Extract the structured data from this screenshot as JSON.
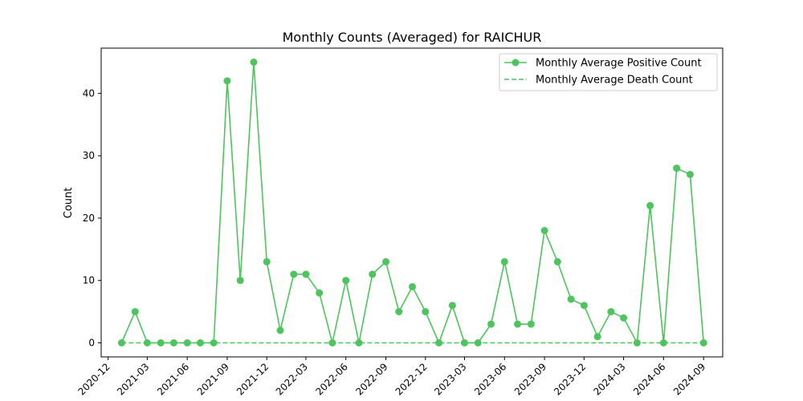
{
  "chart_data": {
    "type": "line",
    "title": "Monthly Counts (Averaged) for RAICHUR",
    "xlabel": "",
    "ylabel": "Count",
    "xlim": [
      "2020-11-15",
      "2024-10-15"
    ],
    "ylim": [
      -2.25,
      47.25
    ],
    "x_ticks": [
      "2020-12",
      "2021-03",
      "2021-06",
      "2021-09",
      "2021-12",
      "2022-03",
      "2022-06",
      "2022-09",
      "2022-12",
      "2023-03",
      "2023-06",
      "2023-09",
      "2023-12",
      "2024-03",
      "2024-06",
      "2024-09"
    ],
    "y_ticks": [
      0,
      10,
      20,
      30,
      40
    ],
    "grid": false,
    "legend_position": "top-right",
    "x": [
      "2021-01",
      "2021-02",
      "2021-03",
      "2021-04",
      "2021-05",
      "2021-06",
      "2021-07",
      "2021-08",
      "2021-09",
      "2021-10",
      "2021-11",
      "2021-12",
      "2022-01",
      "2022-02",
      "2022-03",
      "2022-04",
      "2022-05",
      "2022-06",
      "2022-07",
      "2022-08",
      "2022-09",
      "2022-10",
      "2022-11",
      "2022-12",
      "2023-01",
      "2023-02",
      "2023-03",
      "2023-04",
      "2023-05",
      "2023-06",
      "2023-07",
      "2023-08",
      "2023-09",
      "2023-10",
      "2023-11",
      "2023-12",
      "2024-01",
      "2024-02",
      "2024-03",
      "2024-04",
      "2024-05",
      "2024-06",
      "2024-07",
      "2024-08",
      "2024-09"
    ],
    "series": [
      {
        "name": "Monthly Average Positive Count",
        "style": "solid-marker",
        "color": "#4dc45e",
        "values": [
          0,
          5,
          0,
          0,
          0,
          0,
          0,
          0,
          42,
          10,
          45,
          13,
          2,
          11,
          11,
          8,
          0,
          10,
          0,
          11,
          13,
          5,
          9,
          5,
          0,
          6,
          0,
          0,
          3,
          13,
          3,
          3,
          18,
          13,
          7,
          6,
          1,
          5,
          4,
          0,
          22,
          0,
          28,
          27,
          0
        ]
      },
      {
        "name": "Monthly Average Death Count",
        "style": "dashed",
        "color": "#4dc45e",
        "values": [
          0,
          0,
          0,
          0,
          0,
          0,
          0,
          0,
          0,
          0,
          0,
          0,
          0,
          0,
          0,
          0,
          0,
          0,
          0,
          0,
          0,
          0,
          0,
          0,
          0,
          0,
          0,
          0,
          0,
          0,
          0,
          0,
          0,
          0,
          0,
          0,
          0,
          0,
          0,
          0,
          0,
          0,
          0,
          0,
          0
        ]
      }
    ]
  }
}
